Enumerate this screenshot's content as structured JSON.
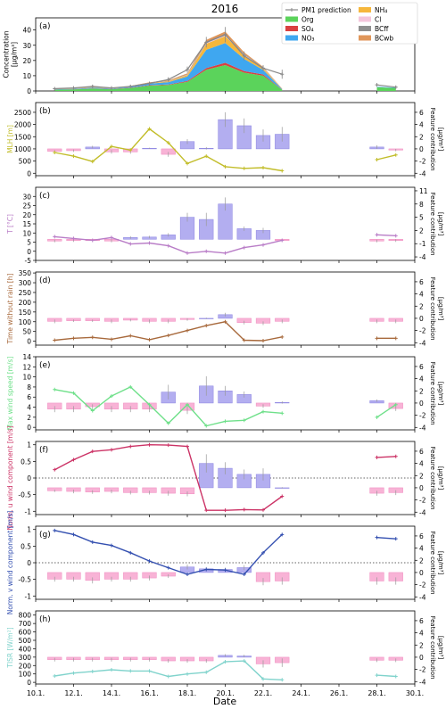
{
  "figure": {
    "title": "2016",
    "xlabel": "Date",
    "x_ticks": [
      "10.1.",
      "12.1.",
      "14.1.",
      "16.1.",
      "18.1.",
      "20.1.",
      "22.1.",
      "24.1.",
      "26.1.",
      "28.1.",
      "30.1."
    ],
    "x_tick_days": [
      10,
      12,
      14,
      16,
      18,
      20,
      22,
      24,
      26,
      28,
      30
    ],
    "xlim_days": [
      10,
      30
    ],
    "feature_axis_label": "Feature contribution",
    "feature_axis_unit": "[µg/m³]"
  },
  "colors": {
    "Org": "#5bd35b",
    "SO4": "#d94040",
    "NO3": "#3fa7f0",
    "NH4": "#f6b73c",
    "Cl": "#f4c6dc",
    "BCff": "#8f8f8f",
    "BCwb": "#e0965a",
    "pred": "#888888",
    "pos_bar": "#b3aef0",
    "pos_edge": "#8a83e0",
    "neg_bar": "#f8b3d6",
    "neg_edge": "#f08cc0"
  },
  "legend": [
    {
      "key": "pred",
      "label": "PM1 prediction",
      "type": "line"
    },
    {
      "key": "NH4",
      "label": "NH₄",
      "type": "patch"
    },
    {
      "key": "Org",
      "label": "Org",
      "type": "patch"
    },
    {
      "key": "Cl",
      "label": "Cl",
      "type": "patch"
    },
    {
      "key": "SO4",
      "label": "SO₄",
      "type": "patch"
    },
    {
      "key": "BCff",
      "label": "BCff",
      "type": "patch"
    },
    {
      "key": "NO3",
      "label": "NO₃",
      "type": "patch"
    },
    {
      "key": "BCwb",
      "label": "BCwb",
      "type": "patch"
    }
  ],
  "chart_data": [
    {
      "type": "area",
      "panel": "(a)",
      "ylabel": "Concentration",
      "yunit": "[µg/m³]",
      "ylim": [
        0,
        48
      ],
      "yticks": [
        0,
        10,
        20,
        30,
        40
      ],
      "x": [
        11,
        12,
        13,
        14,
        15,
        16,
        17,
        18,
        19,
        20,
        21,
        22,
        23
      ],
      "series": [
        {
          "name": "Org",
          "values": [
            0.8,
            1.0,
            1.5,
            1.2,
            2.0,
            3.5,
            4.0,
            6.0,
            14.0,
            17.0,
            12.0,
            10.0,
            0.8
          ]
        },
        {
          "name": "SO4",
          "values": [
            0.1,
            0.1,
            0.2,
            0.1,
            0.2,
            0.3,
            0.3,
            0.5,
            1.0,
            1.5,
            1.0,
            0.8,
            0.1
          ]
        },
        {
          "name": "NO3",
          "values": [
            0.2,
            0.3,
            0.5,
            0.3,
            0.5,
            1.0,
            1.5,
            3.0,
            12.0,
            13.0,
            8.0,
            3.0,
            0.3
          ]
        },
        {
          "name": "NH4",
          "values": [
            0.1,
            0.1,
            0.2,
            0.1,
            0.2,
            0.3,
            0.5,
            1.0,
            4.0,
            4.5,
            2.5,
            1.0,
            0.1
          ]
        },
        {
          "name": "Cl",
          "values": [
            0.0,
            0.0,
            0.1,
            0.0,
            0.1,
            0.1,
            0.1,
            0.2,
            0.4,
            0.4,
            0.3,
            0.2,
            0.0
          ]
        },
        {
          "name": "BCff",
          "values": [
            0.1,
            0.1,
            0.1,
            0.1,
            0.1,
            0.2,
            0.2,
            0.3,
            0.6,
            0.8,
            0.5,
            0.3,
            0.1
          ]
        },
        {
          "name": "BCwb",
          "values": [
            0.1,
            0.1,
            0.2,
            0.1,
            0.2,
            0.3,
            0.4,
            0.6,
            1.5,
            1.8,
            1.0,
            0.5,
            0.1
          ]
        }
      ],
      "extra_x": [
        28,
        29
      ],
      "extra_series": [
        {
          "name": "Org",
          "values": [
            2.5,
            2.0
          ]
        },
        {
          "name": "NO3",
          "values": [
            0.3,
            0.3
          ]
        }
      ],
      "prediction": {
        "x": [
          11,
          12,
          13,
          14,
          15,
          16,
          17,
          18,
          19,
          20,
          21,
          22,
          23,
          28,
          29
        ],
        "y": [
          1.5,
          2.0,
          3.0,
          2.0,
          3.0,
          5.0,
          7.5,
          14.0,
          32.0,
          37.0,
          23.0,
          15.0,
          11.0,
          4.0,
          2.5
        ],
        "err": [
          0.8,
          0.8,
          0.8,
          0.8,
          0.8,
          1.0,
          1.5,
          2.0,
          3.5,
          5.0,
          3.0,
          2.0,
          3.0,
          1.0,
          0.8
        ]
      }
    },
    {
      "type": "line+bar",
      "panel": "(b)",
      "ylabel": "MLH [m]",
      "line_color": "#c2bd2a",
      "ylim": [
        -100,
        2900
      ],
      "yticks": [
        0,
        500,
        1000,
        1500,
        2000,
        2500
      ],
      "flim": [
        -4.4,
        7.6
      ],
      "fticks": [
        -4,
        -2,
        0,
        2,
        4,
        6
      ],
      "x": [
        11,
        12,
        13,
        14,
        15,
        16,
        17,
        18,
        19,
        20,
        21,
        22,
        23
      ],
      "y": [
        850,
        700,
        480,
        1100,
        950,
        1820,
        1250,
        400,
        700,
        270,
        200,
        230,
        100
      ],
      "extra_x": [
        28,
        29
      ],
      "extra_y": [
        560,
        750
      ],
      "contrib": [
        -0.4,
        -0.3,
        0.3,
        -0.5,
        -0.5,
        0.1,
        -0.9,
        1.2,
        0.1,
        4.8,
        3.8,
        2.2,
        2.4,
        0.3,
        -0.2
      ],
      "contrib_err": [
        0.2,
        0.2,
        0.2,
        0.3,
        0.3,
        0.1,
        0.4,
        0.4,
        0.2,
        1.2,
        1.2,
        1.0,
        1.2,
        0.3,
        0.2
      ],
      "contrib_x": [
        11,
        12,
        13,
        14,
        15,
        16,
        17,
        18,
        19,
        20,
        21,
        22,
        23,
        28,
        29
      ]
    },
    {
      "type": "line+bar",
      "panel": "(c)",
      "ylabel": "T [°C]",
      "line_color": "#b97dc7",
      "ylim": [
        -5,
        35
      ],
      "yticks": [
        -5,
        0,
        5,
        10,
        15,
        20,
        25,
        30
      ],
      "flim": [
        -4.8,
        11.8
      ],
      "fticks": [
        -4,
        -1,
        2,
        5,
        8,
        11
      ],
      "x": [
        11,
        12,
        13,
        14,
        15,
        16,
        17,
        18,
        19,
        20,
        21,
        22,
        23
      ],
      "y": [
        8,
        7,
        6,
        7.5,
        4,
        4.5,
        3,
        -1,
        0,
        -1,
        2,
        3.5,
        6
      ],
      "extra_x": [
        28,
        29
      ],
      "extra_y": [
        9,
        8.5
      ],
      "contrib": [
        -0.4,
        -0.3,
        -0.3,
        -0.4,
        0.4,
        0.5,
        1.0,
        5.0,
        4.5,
        8.0,
        2.4,
        2.0,
        -0.3,
        -0.4,
        -0.3
      ],
      "contrib_err": [
        0.3,
        0.3,
        0.3,
        0.3,
        0.3,
        0.3,
        0.4,
        1.0,
        1.5,
        1.5,
        0.5,
        0.6,
        0.3,
        0.3,
        0.3
      ],
      "contrib_x": [
        11,
        12,
        13,
        14,
        15,
        16,
        17,
        18,
        19,
        20,
        21,
        22,
        23,
        28,
        29
      ]
    },
    {
      "type": "line+bar",
      "panel": "(d)",
      "ylabel": "Time without rain [h]",
      "line_color": "#a86a3d",
      "ylim": [
        -20,
        355
      ],
      "yticks": [
        0,
        50,
        100,
        150,
        200,
        250,
        300,
        350
      ],
      "flim": [
        -4.4,
        7.6
      ],
      "fticks": [
        -4,
        -2,
        0,
        2,
        4,
        6
      ],
      "x": [
        11,
        12,
        13,
        14,
        15,
        16,
        17,
        18,
        19,
        20,
        21,
        22,
        23
      ],
      "y": [
        5,
        15,
        20,
        10,
        28,
        8,
        30,
        55,
        80,
        100,
        5,
        3,
        22
      ],
      "extra_x": [
        28,
        29
      ],
      "extra_y": [
        15,
        15
      ],
      "contrib": [
        -0.5,
        -0.4,
        -0.4,
        -0.5,
        -0.3,
        -0.5,
        -0.5,
        -0.2,
        0.0,
        0.6,
        -0.7,
        -0.8,
        -0.5,
        -0.5,
        -0.5
      ],
      "contrib_err": [
        0.3,
        0.2,
        0.2,
        0.3,
        0.2,
        0.3,
        0.3,
        0.2,
        0.1,
        0.3,
        0.3,
        0.3,
        0.3,
        0.3,
        0.3
      ],
      "contrib_x": [
        11,
        12,
        13,
        14,
        15,
        16,
        17,
        18,
        19,
        20,
        21,
        22,
        23,
        28,
        29
      ]
    },
    {
      "type": "line+bar",
      "panel": "(e)",
      "ylabel": "Max wind speed [m/s]",
      "line_color": "#6fe08a",
      "ylim": [
        -0.5,
        14
      ],
      "yticks": [
        0,
        2,
        4,
        6,
        8,
        10,
        12,
        14
      ],
      "flim": [
        -4.4,
        7.6
      ],
      "fticks": [
        -4,
        -2,
        0,
        2,
        4,
        6
      ],
      "x": [
        11,
        12,
        13,
        14,
        15,
        16,
        17,
        18,
        19,
        20,
        21,
        22,
        23
      ],
      "y": [
        7.5,
        6.8,
        3.3,
        6.2,
        8.0,
        4.5,
        0.8,
        4.5,
        0.3,
        1.2,
        1.4,
        3.1,
        2.8
      ],
      "extra_x": [
        28,
        29
      ],
      "extra_y": [
        2.0,
        4.5
      ],
      "contrib": [
        -1.0,
        -1.0,
        -0.6,
        -1.0,
        -1.0,
        -1.0,
        1.8,
        -1.2,
        2.8,
        2.0,
        1.4,
        -0.5,
        0.1,
        0.4,
        -0.9
      ],
      "contrib_err": [
        0.5,
        0.5,
        0.4,
        0.5,
        0.5,
        0.5,
        1.2,
        0.6,
        1.6,
        0.8,
        0.5,
        0.3,
        0.2,
        0.2,
        0.4
      ],
      "contrib_x": [
        11,
        12,
        13,
        14,
        15,
        16,
        17,
        18,
        19,
        20,
        21,
        22,
        23,
        28,
        29
      ]
    },
    {
      "type": "line+bar",
      "panel": "(f)",
      "ylabel": "Norm. u wind component [m/s]",
      "line_color": "#cc3366",
      "ylim": [
        -1.1,
        1.1
      ],
      "yticks": [
        -1.0,
        -0.5,
        0.0,
        0.5,
        1.0
      ],
      "flim": [
        -4.4,
        7.6
      ],
      "fticks": [
        -4,
        -2,
        0,
        2,
        4,
        6
      ],
      "dotted_zero": true,
      "x": [
        11,
        12,
        13,
        14,
        15,
        16,
        17,
        18,
        19,
        20,
        21,
        22,
        23
      ],
      "y": [
        0.25,
        0.55,
        0.8,
        0.85,
        0.95,
        1.0,
        0.99,
        0.95,
        -0.97,
        -0.97,
        -0.95,
        -0.96,
        -0.55
      ],
      "extra_x": [
        28,
        29
      ],
      "extra_y": [
        0.62,
        0.65
      ],
      "contrib": [
        -0.5,
        -0.6,
        -0.7,
        -0.6,
        -0.8,
        -0.8,
        -0.9,
        -1.0,
        4.0,
        3.2,
        2.2,
        2.2,
        0.0,
        -0.9,
        -0.8
      ],
      "contrib_err": [
        0.2,
        0.3,
        0.3,
        0.3,
        0.3,
        0.3,
        0.4,
        0.4,
        1.5,
        1.0,
        0.8,
        1.0,
        0.1,
        0.4,
        0.4
      ],
      "contrib_x": [
        11,
        12,
        13,
        14,
        15,
        16,
        17,
        18,
        19,
        20,
        21,
        22,
        23,
        28,
        29
      ]
    },
    {
      "type": "line+bar",
      "panel": "(g)",
      "ylabel": "Norm. v wind component [m/s]",
      "line_color": "#334fb0",
      "ylim": [
        -1.1,
        1.1
      ],
      "yticks": [
        -1.0,
        -0.5,
        0.0,
        0.5,
        1.0
      ],
      "flim": [
        -4.4,
        7.6
      ],
      "fticks": [
        -4,
        -2,
        0,
        2,
        4,
        6
      ],
      "dotted_zero": true,
      "x": [
        11,
        12,
        13,
        14,
        15,
        16,
        17,
        18,
        19,
        20,
        21,
        22,
        23
      ],
      "y": [
        0.97,
        0.85,
        0.62,
        0.52,
        0.3,
        0.05,
        -0.15,
        -0.35,
        -0.2,
        -0.22,
        -0.35,
        0.3,
        0.85
      ],
      "extra_x": [
        28,
        29
      ],
      "extra_y": [
        0.76,
        0.72
      ],
      "contrib": [
        -1.1,
        -1.1,
        -1.3,
        -1.1,
        -1.1,
        -0.9,
        -0.6,
        0.9,
        0.6,
        0.5,
        0.8,
        -1.5,
        -1.4,
        -1.4,
        -1.4
      ],
      "contrib_err": [
        0.4,
        0.4,
        0.5,
        0.4,
        0.4,
        0.4,
        0.3,
        0.4,
        0.3,
        0.3,
        0.4,
        0.6,
        0.6,
        0.6,
        0.6
      ],
      "contrib_x": [
        11,
        12,
        13,
        14,
        15,
        16,
        17,
        18,
        19,
        20,
        21,
        22,
        23,
        28,
        29
      ]
    },
    {
      "type": "line+bar",
      "panel": "(h)",
      "ylabel": "TISR [W/m²]",
      "line_color": "#80d3cc",
      "ylim": [
        -20,
        850
      ],
      "yticks": [
        0,
        100,
        200,
        300,
        400,
        500,
        600,
        700,
        800
      ],
      "flim": [
        -4.4,
        7.6
      ],
      "fticks": [
        -4,
        -2,
        0,
        2,
        4,
        6
      ],
      "x": [
        11,
        12,
        13,
        14,
        15,
        16,
        17,
        18,
        19,
        20,
        21,
        22,
        23
      ],
      "y": [
        75,
        110,
        130,
        150,
        135,
        135,
        70,
        100,
        120,
        245,
        255,
        40,
        30
      ],
      "extra_x": [
        28,
        29
      ],
      "extra_y": [
        85,
        70
      ],
      "contrib": [
        -0.4,
        -0.4,
        -0.4,
        -0.4,
        -0.4,
        -0.4,
        -0.6,
        -0.6,
        -0.6,
        0.3,
        0.2,
        -1.1,
        -0.9,
        -0.5,
        -0.5
      ],
      "contrib_err": [
        0.3,
        0.3,
        0.3,
        0.3,
        0.3,
        0.3,
        0.3,
        0.3,
        0.3,
        0.2,
        0.2,
        0.6,
        0.7,
        0.3,
        0.3
      ],
      "contrib_x": [
        11,
        12,
        13,
        14,
        15,
        16,
        17,
        18,
        19,
        20,
        21,
        22,
        23,
        28,
        29
      ]
    }
  ]
}
